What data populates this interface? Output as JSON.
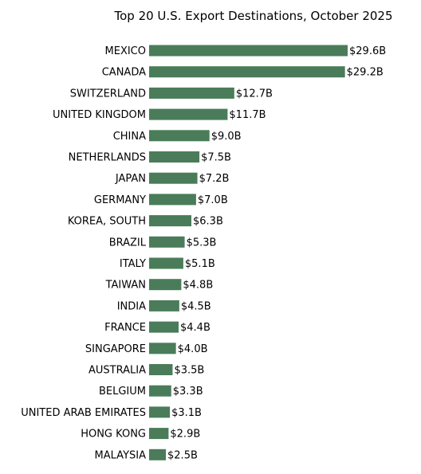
{
  "chart_data": {
    "type": "bar",
    "orientation": "horizontal",
    "title": "Top 20 U.S. Export Destinations, October 2025",
    "xlabel": "",
    "ylabel": "",
    "grid": false,
    "bar_color": "#4a7c59",
    "categories": [
      "MEXICO",
      "CANADA",
      "SWITZERLAND",
      "UNITED KINGDOM",
      "CHINA",
      "NETHERLANDS",
      "JAPAN",
      "GERMANY",
      "KOREA, SOUTH",
      "BRAZIL",
      "ITALY",
      "TAIWAN",
      "INDIA",
      "FRANCE",
      "SINGAPORE",
      "AUSTRALIA",
      "BELGIUM",
      "UNITED ARAB EMIRATES",
      "HONG KONG",
      "MALAYSIA"
    ],
    "values": [
      29.6,
      29.2,
      12.7,
      11.7,
      9.0,
      7.5,
      7.2,
      7.0,
      6.3,
      5.3,
      5.1,
      4.8,
      4.5,
      4.4,
      4.0,
      3.5,
      3.3,
      3.1,
      2.9,
      2.5
    ],
    "value_labels": [
      "$29.6B",
      "$29.2B",
      "$12.7B",
      "$11.7B",
      "$9.0B",
      "$7.5B",
      "$7.2B",
      "$7.0B",
      "$6.3B",
      "$5.3B",
      "$5.1B",
      "$4.8B",
      "$4.5B",
      "$4.4B",
      "$4.0B",
      "$3.5B",
      "$3.3B",
      "$3.1B",
      "$2.9B",
      "$2.5B"
    ]
  }
}
